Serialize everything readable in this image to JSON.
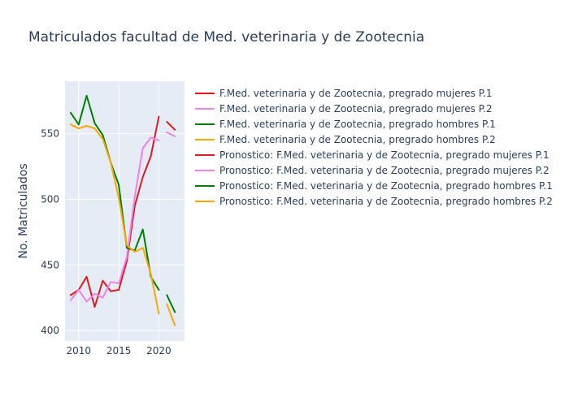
{
  "chart_data": {
    "type": "line",
    "title": "Matriculados facultad de Med. veterinaria y de Zootecnia",
    "xlabel": "",
    "ylabel": "No. Matriculados",
    "xlim": [
      2008.3,
      2023.2
    ],
    "ylim": [
      392,
      590
    ],
    "xticks": [
      2010,
      2015,
      2020
    ],
    "yticks": [
      400,
      450,
      500,
      550
    ],
    "grid": true,
    "legend_position": "right",
    "series": [
      {
        "name": "F.Med. veterinaria y de Zootecnia, pregrado mujeres P.1",
        "color": "#e31a1c",
        "x": [
          2009,
          2010,
          2011,
          2012,
          2013,
          2014,
          2015,
          2016,
          2017,
          2018,
          2019,
          2020
        ],
        "y": [
          427,
          431,
          441,
          418,
          438,
          430,
          431,
          453,
          495,
          517,
          533,
          563
        ]
      },
      {
        "name": "F.Med. veterinaria y de Zootecnia, pregrado mujeres P.2",
        "color": "#ee82ee",
        "x": [
          2009,
          2010,
          2011,
          2012,
          2013,
          2014,
          2015,
          2016,
          2017,
          2018,
          2019,
          2020
        ],
        "y": [
          423,
          431,
          422,
          428,
          425,
          437,
          436,
          456,
          502,
          539,
          547,
          545
        ]
      },
      {
        "name": "F.Med. veterinaria y de Zootecnia, pregrado hombres P.1",
        "color": "#008000",
        "x": [
          2009,
          2010,
          2011,
          2012,
          2013,
          2014,
          2015,
          2016,
          2017,
          2018,
          2019,
          2020
        ],
        "y": [
          566,
          557,
          579,
          558,
          549,
          528,
          511,
          463,
          461,
          477,
          441,
          431
        ]
      },
      {
        "name": "F.Med. veterinaria y de Zootecnia, pregrado hombres P.2",
        "color": "#ffa500",
        "x": [
          2009,
          2010,
          2011,
          2012,
          2013,
          2014,
          2015,
          2016,
          2017,
          2018,
          2019,
          2020
        ],
        "y": [
          557,
          554,
          556,
          554,
          546,
          528,
          501,
          465,
          460,
          463,
          443,
          413
        ]
      },
      {
        "name": "Pronostico: F.Med. veterinaria y de Zootecnia, pregrado mujeres P.1",
        "color": "#e31a1c",
        "x": [
          2021,
          2022
        ],
        "y": [
          559,
          553
        ]
      },
      {
        "name": "Pronostico: F.Med. veterinaria y de Zootecnia, pregrado mujeres P.2",
        "color": "#ee82ee",
        "x": [
          2021,
          2022
        ],
        "y": [
          551,
          548
        ]
      },
      {
        "name": "Pronostico: F.Med. veterinaria y de Zootecnia, pregrado hombres P.1",
        "color": "#008000",
        "x": [
          2021,
          2022
        ],
        "y": [
          427,
          414
        ]
      },
      {
        "name": "Pronostico: F.Med. veterinaria y de Zootecnia, pregrado hombres P.2",
        "color": "#ffa500",
        "x": [
          2021,
          2022
        ],
        "y": [
          420,
          404
        ]
      }
    ]
  }
}
